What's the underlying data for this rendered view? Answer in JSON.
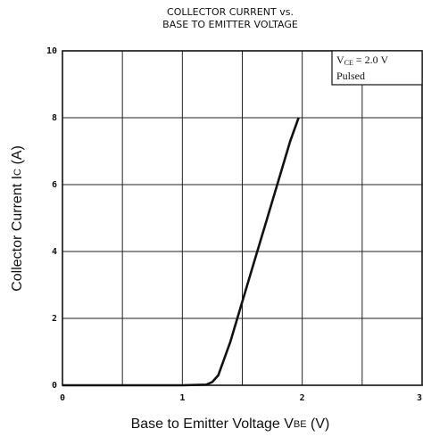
{
  "chart_data": {
    "type": "line",
    "title": [
      "COLLECTOR CURRENT vs.",
      "BASE TO EMITTER VOLTAGE"
    ],
    "xlabel": {
      "text": "Base to Emitter Voltage  V",
      "subscript": "BE",
      "unit": "  (V)"
    },
    "ylabel": {
      "text": "Collector Current  I",
      "subscript": "C",
      "unit": "  (A)"
    },
    "annotation": [
      {
        "text": "V",
        "subscript": "CE",
        "rest": " = 2.0 V"
      },
      {
        "text": "Pulsed"
      }
    ],
    "series": [
      {
        "color": "#111111",
        "x": [
          0,
          1.0,
          1.2,
          1.25,
          1.3,
          1.4,
          1.5,
          1.6,
          1.7,
          1.8,
          1.9,
          1.97
        ],
        "values": [
          0,
          0,
          0.02,
          0.1,
          0.3,
          1.3,
          2.5,
          3.7,
          4.9,
          6.1,
          7.3,
          8
        ]
      }
    ],
    "xlim": [
      0,
      3
    ],
    "xticks": [
      0,
      1,
      2,
      3
    ],
    "x_minor_grid": [
      0.5,
      1.5,
      2.5
    ],
    "ylim": [
      0,
      10
    ],
    "yticks": [
      0,
      2,
      4,
      6,
      8,
      10
    ],
    "grid": true
  }
}
